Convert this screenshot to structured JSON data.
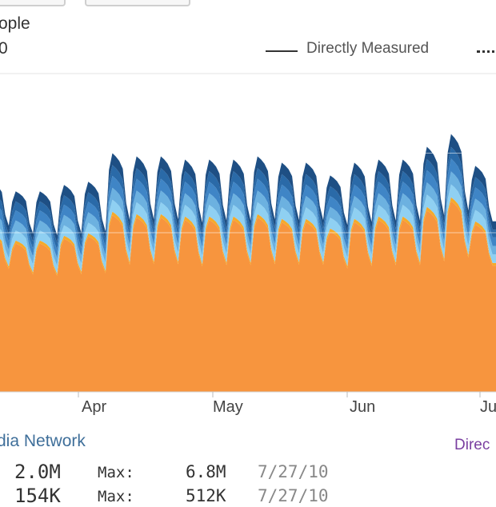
{
  "header": {
    "title": "ople",
    "count": "0"
  },
  "legend": {
    "directly_measured": "Directly Measured"
  },
  "chart_data": {
    "type": "area",
    "stacked": true,
    "x_ticks": [
      "Apr",
      "May",
      "Jun",
      "Ju"
    ],
    "grid": true,
    "colors": [
      "#f7953e",
      "#f5aa2a",
      "#8fd0f2",
      "#6cb1e0",
      "#3f85c6",
      "#2a6aa8",
      "#1e4f84"
    ],
    "periods": 21,
    "peaks": [
      0.66,
      0.63,
      0.63,
      0.65,
      0.66,
      0.75,
      0.74,
      0.74,
      0.73,
      0.73,
      0.73,
      0.74,
      0.72,
      0.72,
      0.68,
      0.72,
      0.73,
      0.73,
      0.77,
      0.81,
      0.71
    ],
    "troughs": [
      0.43,
      0.41,
      0.4,
      0.4,
      0.4,
      0.4,
      0.41,
      0.41,
      0.4,
      0.41,
      0.41,
      0.41,
      0.42,
      0.42,
      0.42,
      0.41,
      0.41,
      0.41,
      0.41,
      0.41,
      0.42
    ],
    "base_share": 0.74
  },
  "footer": {
    "network": "dia Network",
    "direct": "Direc",
    "value": "2.0M",
    "max_label": "Max:",
    "max_value": "6.8M",
    "max_date": "7/27/10",
    "row2_value": "154K",
    "row2_label": "Max:",
    "row2_max": "512K",
    "row2_date": "7/27/10"
  }
}
